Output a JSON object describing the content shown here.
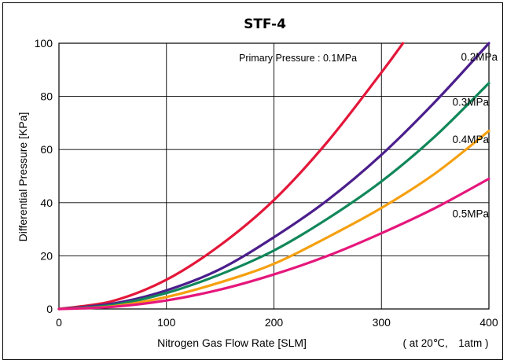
{
  "chart_data": {
    "type": "line",
    "title": "STF-4",
    "xlabel": "Nitrogen Gas Flow Rate [SLM]",
    "ylabel": "Differential Pressure [KPa]",
    "note": "( at 20℃,　1atm )",
    "legend_title": "Primary Pressure : 0.1MPa",
    "xlim": [
      0,
      400
    ],
    "ylim": [
      0,
      100
    ],
    "xticks": [
      "0",
      "100",
      "200",
      "300",
      "400"
    ],
    "yticks": [
      "0",
      "20",
      "40",
      "60",
      "80",
      "100"
    ],
    "grid": true,
    "series": [
      {
        "name": "0.1MPa",
        "color": "#e3173a",
        "x": [
          0,
          50,
          100,
          150,
          200,
          250,
          300,
          320
        ],
        "y": [
          0,
          3,
          11,
          24,
          41,
          63,
          89,
          100
        ]
      },
      {
        "name": "0.2MPa",
        "color": "#4b1e8c",
        "x": [
          0,
          50,
          100,
          150,
          200,
          250,
          300,
          350,
          400
        ],
        "y": [
          0,
          2,
          7,
          15,
          27,
          41,
          58,
          78,
          100
        ]
      },
      {
        "name": "0.3MPa",
        "color": "#11875a",
        "x": [
          0,
          50,
          100,
          150,
          200,
          250,
          300,
          350,
          400
        ],
        "y": [
          0,
          1.5,
          6,
          13,
          22,
          34,
          48,
          65,
          85
        ]
      },
      {
        "name": "0.4MPa",
        "color": "#f5a010",
        "x": [
          0,
          50,
          100,
          150,
          200,
          250,
          300,
          350,
          400
        ],
        "y": [
          0,
          1,
          4.5,
          10,
          17,
          27,
          38,
          51,
          67
        ]
      },
      {
        "name": "0.5MPa",
        "color": "#e5177c",
        "x": [
          0,
          50,
          100,
          150,
          200,
          250,
          300,
          350,
          400
        ],
        "y": [
          0,
          0.8,
          3.2,
          7.3,
          13,
          20,
          28.5,
          38,
          49
        ]
      }
    ]
  }
}
